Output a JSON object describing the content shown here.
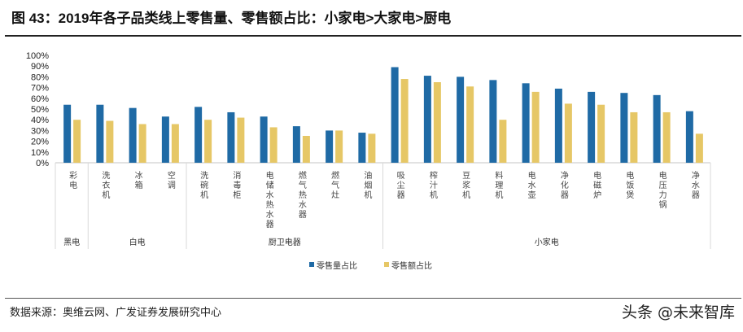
{
  "title": "图 43：2019年各子品类线上零售量、零售额占比：小家电>大家电>厨电",
  "source": "数据来源：奥维云网、广发证券发展研究中心",
  "watermark": "头条 @未来智库",
  "chart_data": {
    "type": "bar",
    "title": "",
    "xlabel": "",
    "ylabel": "",
    "ylim": [
      0,
      1
    ],
    "yticks": [
      "0%",
      "10%",
      "20%",
      "30%",
      "40%",
      "50%",
      "60%",
      "70%",
      "80%",
      "90%",
      "100%"
    ],
    "grid": false,
    "legend_position": "bottom",
    "categories": [
      "彩电",
      "洗衣机",
      "冰箱",
      "空调",
      "洗碗机",
      "消毒柜",
      "电储水热水器",
      "燃气热水器",
      "燃气灶",
      "油烟机",
      "吸尘器",
      "榨汁机",
      "豆浆机",
      "料理机",
      "电水壶",
      "净化器",
      "电磁炉",
      "电饭煲",
      "电压力锅",
      "净水器"
    ],
    "groups": [
      {
        "name": "黑电",
        "count": 1
      },
      {
        "name": "白电",
        "count": 3
      },
      {
        "name": "厨卫电器",
        "count": 6
      },
      {
        "name": "小家电",
        "count": 10
      }
    ],
    "series": [
      {
        "name": "零售量占比",
        "color": "#1f6aa5",
        "values": [
          0.54,
          0.54,
          0.51,
          0.43,
          0.52,
          0.47,
          0.43,
          0.34,
          0.3,
          0.28,
          0.89,
          0.81,
          0.8,
          0.77,
          0.74,
          0.69,
          0.66,
          0.65,
          0.63,
          0.48
        ]
      },
      {
        "name": "零售额占比",
        "color": "#e6c766",
        "values": [
          0.4,
          0.39,
          0.36,
          0.36,
          0.4,
          0.42,
          0.33,
          0.25,
          0.3,
          0.27,
          0.78,
          0.75,
          0.71,
          0.4,
          0.66,
          0.55,
          0.54,
          0.47,
          0.47,
          0.27
        ]
      }
    ]
  }
}
